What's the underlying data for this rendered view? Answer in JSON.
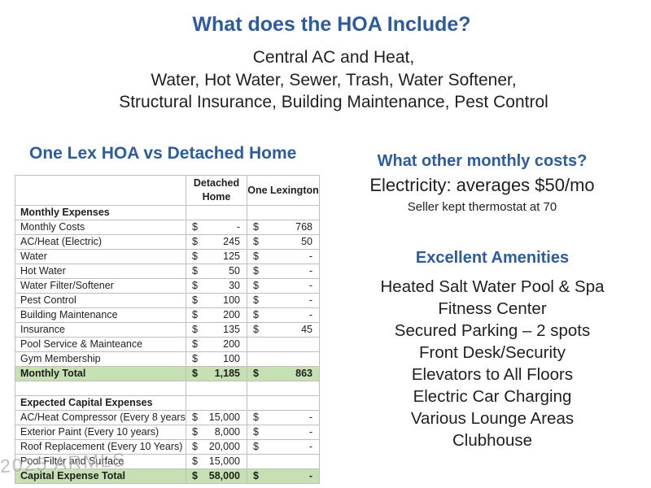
{
  "slide": {
    "title": "What does the HOA Include?",
    "included_lines": [
      "Central AC and Heat,",
      "Water, Hot Water, Sewer, Trash, Water Softener,",
      "Structural Insurance, Building Maintenance, Pest Control"
    ]
  },
  "comparison": {
    "heading": "One Lex HOA vs Detached Home",
    "columns": [
      "",
      "Detached Home",
      "One Lexington"
    ],
    "rows": [
      {
        "type": "section",
        "label": "Monthly Expenses",
        "d": [
          "",
          ""
        ],
        "l": [
          "",
          ""
        ]
      },
      {
        "type": "data",
        "label": "Monthly Costs",
        "d": [
          "$",
          "-"
        ],
        "l": [
          "$",
          "768"
        ]
      },
      {
        "type": "data",
        "label": "AC/Heat (Electric)",
        "d": [
          "$",
          "245"
        ],
        "l": [
          "$",
          "50"
        ]
      },
      {
        "type": "data",
        "label": "Water",
        "d": [
          "$",
          "125"
        ],
        "l": [
          "$",
          "-"
        ]
      },
      {
        "type": "data",
        "label": "Hot Water",
        "d": [
          "$",
          "50"
        ],
        "l": [
          "$",
          "-"
        ]
      },
      {
        "type": "data",
        "label": "Water Filter/Softener",
        "d": [
          "$",
          "30"
        ],
        "l": [
          "$",
          "-"
        ]
      },
      {
        "type": "data",
        "label": "Pest Control",
        "d": [
          "$",
          "100"
        ],
        "l": [
          "$",
          "-"
        ]
      },
      {
        "type": "data",
        "label": "Building Maintenance",
        "d": [
          "$",
          "200"
        ],
        "l": [
          "$",
          "-"
        ]
      },
      {
        "type": "data",
        "label": "Insurance",
        "d": [
          "$",
          "135"
        ],
        "l": [
          "$",
          "45"
        ]
      },
      {
        "type": "data",
        "label": "Pool Service & Mainteance",
        "d": [
          "$",
          "200"
        ],
        "l": [
          "",
          ""
        ]
      },
      {
        "type": "data",
        "label": "Gym Membership",
        "d": [
          "$",
          "100"
        ],
        "l": [
          "",
          ""
        ]
      },
      {
        "type": "total",
        "label": "Monthly Total",
        "d": [
          "$",
          "1,185"
        ],
        "l": [
          "$",
          "863"
        ]
      },
      {
        "type": "blank",
        "label": "",
        "d": [
          "",
          ""
        ],
        "l": [
          "",
          ""
        ]
      },
      {
        "type": "section",
        "label": "Expected Capital Expenses",
        "d": [
          "",
          ""
        ],
        "l": [
          "",
          ""
        ]
      },
      {
        "type": "data",
        "label": "AC/Heat Compressor (Every 8 years)",
        "d": [
          "$",
          "15,000"
        ],
        "l": [
          "$",
          "-"
        ]
      },
      {
        "type": "data",
        "label": "Exterior Paint (Every 10 years)",
        "d": [
          "$",
          "8,000"
        ],
        "l": [
          "$",
          "-"
        ]
      },
      {
        "type": "data",
        "label": "Roof Replacement (Every 10 Years)",
        "d": [
          "$",
          "20,000"
        ],
        "l": [
          "$",
          "-"
        ]
      },
      {
        "type": "data",
        "label": "Pool Filter and Surface",
        "d": [
          "$",
          "15,000"
        ],
        "l": [
          "",
          ""
        ]
      },
      {
        "type": "total",
        "label": "Capital Expense Total",
        "d": [
          "$",
          "58,000"
        ],
        "l": [
          "$",
          "-"
        ]
      }
    ]
  },
  "monthly_costs": {
    "heading": "What other monthly costs?",
    "line": "Electricity: averages $50/mo",
    "subline": "Seller kept thermostat at 70"
  },
  "amenities": {
    "heading": "Excellent Amenities",
    "items": [
      "Heated Salt Water Pool & Spa",
      "Fitness Center",
      "Secured Parking – 2 spots",
      "Front Desk/Security",
      "Elevators to All Floors",
      "Electric Car Charging",
      "Various Lounge Areas",
      "Clubhouse"
    ]
  },
  "watermark": "2025 ARMLS",
  "colors": {
    "accent_blue": "#2e5b9d",
    "highlight_green": "#c6e0b4",
    "text_black": "#1f1f1f",
    "watermark_gray": "#969696"
  }
}
